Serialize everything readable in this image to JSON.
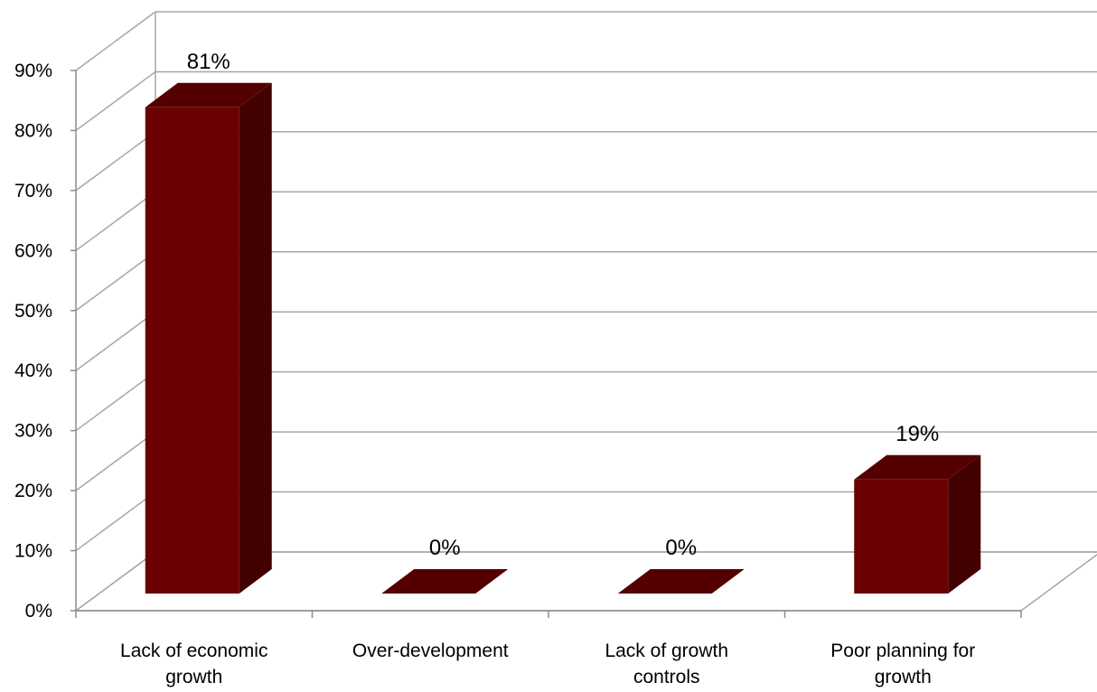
{
  "chart_data": {
    "type": "bar",
    "style": "3d-column",
    "categories": [
      [
        "Lack of economic",
        "growth"
      ],
      [
        "Over-development"
      ],
      [
        "Lack of growth",
        "controls"
      ],
      [
        "Poor planning for",
        "growth"
      ]
    ],
    "values": [
      81,
      0,
      0,
      19
    ],
    "data_labels": [
      "81%",
      "0%",
      "0%",
      "19%"
    ],
    "y_ticks": [
      "0%",
      "10%",
      "20%",
      "30%",
      "40%",
      "50%",
      "60%",
      "70%",
      "80%",
      "90%"
    ],
    "ylim": [
      0,
      90
    ],
    "grid": true,
    "legend": "none",
    "colors": {
      "bar_front": "#6b0000",
      "bar_side": "#420000",
      "bar_top": "#550000",
      "grid": "#a6a6a6",
      "axis": "#8c8c8c"
    }
  }
}
